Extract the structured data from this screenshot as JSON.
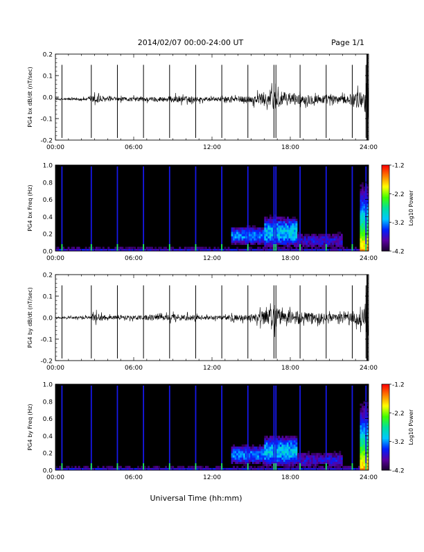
{
  "header": {
    "title": "2014/02/07  00:00-24:00 UT",
    "page": "Page 1/1"
  },
  "footer": {
    "xlabel": "Universal Time (hh:mm)"
  },
  "colors": {
    "spectrogram_background": "#000000",
    "trace": "#000000",
    "colormap": [
      "#1a0030",
      "#5a00a0",
      "#0020ff",
      "#00c8ff",
      "#00e0a0",
      "#40ff00",
      "#ffff00",
      "#ff8000",
      "#ff0000"
    ]
  },
  "chart_data": [
    {
      "type": "line",
      "panel": "bx-waveform",
      "ylabel": "PG4 bx dB/dt (nT/sec)",
      "xlim": [
        "00:00",
        "24:00"
      ],
      "ylim": [
        -0.2,
        0.2
      ],
      "x_ticks": [
        "00:00",
        "06:00",
        "12:00",
        "18:00",
        "24:00"
      ],
      "y_ticks": [
        "-0.2",
        "-0.1",
        "0.0",
        "0.1",
        "0.2"
      ],
      "baseline": -0.01,
      "calibration_spikes_hours": [
        0.5,
        2.75,
        4.75,
        6.75,
        8.75,
        10.75,
        12.75,
        14.75,
        16.75,
        16.9,
        18.75,
        20.75,
        22.75,
        23.8
      ],
      "spike_range": [
        -0.19,
        0.15
      ],
      "noise_envelope": [
        {
          "x": 0,
          "amp": 0.005
        },
        {
          "x": 2.5,
          "amp": 0.008
        },
        {
          "x": 3.2,
          "amp": 0.03
        },
        {
          "x": 4.0,
          "amp": 0.01
        },
        {
          "x": 8.0,
          "amp": 0.015
        },
        {
          "x": 9.5,
          "amp": 0.02
        },
        {
          "x": 12.0,
          "amp": 0.01
        },
        {
          "x": 15.0,
          "amp": 0.02
        },
        {
          "x": 16.8,
          "amp": 0.06
        },
        {
          "x": 17.5,
          "amp": 0.04
        },
        {
          "x": 18.5,
          "amp": 0.03
        },
        {
          "x": 20.0,
          "amp": 0.03
        },
        {
          "x": 22.0,
          "amp": 0.02
        },
        {
          "x": 23.6,
          "amp": 0.05
        },
        {
          "x": 24,
          "amp": 0.15
        }
      ]
    },
    {
      "type": "heatmap",
      "panel": "bx-spectrogram",
      "ylabel": "PG4 bx Freq (Hz)",
      "xlim": [
        "00:00",
        "24:00"
      ],
      "ylim": [
        0.0,
        1.0
      ],
      "x_ticks": [
        "00:00",
        "06:00",
        "12:00",
        "18:00",
        "24:00"
      ],
      "y_ticks": [
        "0.0",
        "0.2",
        "0.4",
        "0.6",
        "0.8",
        "1.0"
      ],
      "colorbar": {
        "label": "Log10 Power",
        "range": [
          -4.2,
          -1.2
        ],
        "ticks": [
          "-1.2",
          "-2.2",
          "-3.2",
          "-4.2"
        ]
      },
      "calibration_lines_hours": [
        0.5,
        2.75,
        4.75,
        6.75,
        8.75,
        10.75,
        12.75,
        14.75,
        16.75,
        16.9,
        18.75,
        20.75,
        22.75,
        23.8
      ],
      "emission_features": [
        {
          "x_start": 13.5,
          "x_end": 16.0,
          "f_center": 0.18,
          "f_width": 0.08,
          "log_power": -3.0
        },
        {
          "x_start": 16.0,
          "x_end": 18.5,
          "f_center": 0.22,
          "f_width": 0.12,
          "log_power": -2.8
        },
        {
          "x_start": 18.5,
          "x_end": 22.0,
          "f_center": 0.12,
          "f_width": 0.08,
          "log_power": -3.4
        }
      ]
    },
    {
      "type": "line",
      "panel": "by-waveform",
      "ylabel": "PG4 by dB/dt (nT/sec)",
      "xlim": [
        "00:00",
        "24:00"
      ],
      "ylim": [
        -0.2,
        0.2
      ],
      "x_ticks": [
        "00:00",
        "06:00",
        "12:00",
        "18:00",
        "24:00"
      ],
      "y_ticks": [
        "-0.2",
        "-0.1",
        "0.0",
        "0.1",
        "0.2"
      ],
      "baseline": 0.0,
      "calibration_spikes_hours": [
        0.5,
        2.75,
        4.75,
        6.75,
        8.75,
        10.75,
        12.75,
        14.75,
        16.75,
        16.9,
        18.75,
        20.75,
        22.75,
        23.8
      ],
      "spike_range": [
        -0.19,
        0.15
      ],
      "noise_envelope": [
        {
          "x": 0,
          "amp": 0.005
        },
        {
          "x": 2.5,
          "amp": 0.008
        },
        {
          "x": 3.2,
          "amp": 0.025
        },
        {
          "x": 4.0,
          "amp": 0.01
        },
        {
          "x": 8.0,
          "amp": 0.015
        },
        {
          "x": 9.5,
          "amp": 0.02
        },
        {
          "x": 12.0,
          "amp": 0.01
        },
        {
          "x": 15.0,
          "amp": 0.02
        },
        {
          "x": 16.8,
          "amp": 0.06
        },
        {
          "x": 17.5,
          "amp": 0.04
        },
        {
          "x": 18.5,
          "amp": 0.03
        },
        {
          "x": 20.0,
          "amp": 0.03
        },
        {
          "x": 22.0,
          "amp": 0.02
        },
        {
          "x": 23.6,
          "amp": 0.05
        },
        {
          "x": 24,
          "amp": 0.15
        }
      ]
    },
    {
      "type": "heatmap",
      "panel": "by-spectrogram",
      "ylabel": "PG4 by Freq (Hz)",
      "xlim": [
        "00:00",
        "24:00"
      ],
      "ylim": [
        0.0,
        1.0
      ],
      "x_ticks": [
        "00:00",
        "06:00",
        "12:00",
        "18:00",
        "24:00"
      ],
      "y_ticks": [
        "0.0",
        "0.2",
        "0.4",
        "0.6",
        "0.8",
        "1.0"
      ],
      "colorbar": {
        "label": "Log10 Power",
        "range": [
          -4.2,
          -1.2
        ],
        "ticks": [
          "-1.2",
          "-2.2",
          "-3.2",
          "-4.2"
        ]
      },
      "calibration_lines_hours": [
        0.5,
        2.75,
        4.75,
        6.75,
        8.75,
        10.75,
        12.75,
        14.75,
        16.75,
        16.9,
        18.75,
        20.75,
        22.75,
        23.8
      ],
      "emission_features": [
        {
          "x_start": 13.5,
          "x_end": 16.0,
          "f_center": 0.18,
          "f_width": 0.08,
          "log_power": -3.0
        },
        {
          "x_start": 16.0,
          "x_end": 18.5,
          "f_center": 0.22,
          "f_width": 0.12,
          "log_power": -2.8
        },
        {
          "x_start": 18.5,
          "x_end": 22.0,
          "f_center": 0.12,
          "f_width": 0.08,
          "log_power": -3.4
        }
      ]
    }
  ]
}
